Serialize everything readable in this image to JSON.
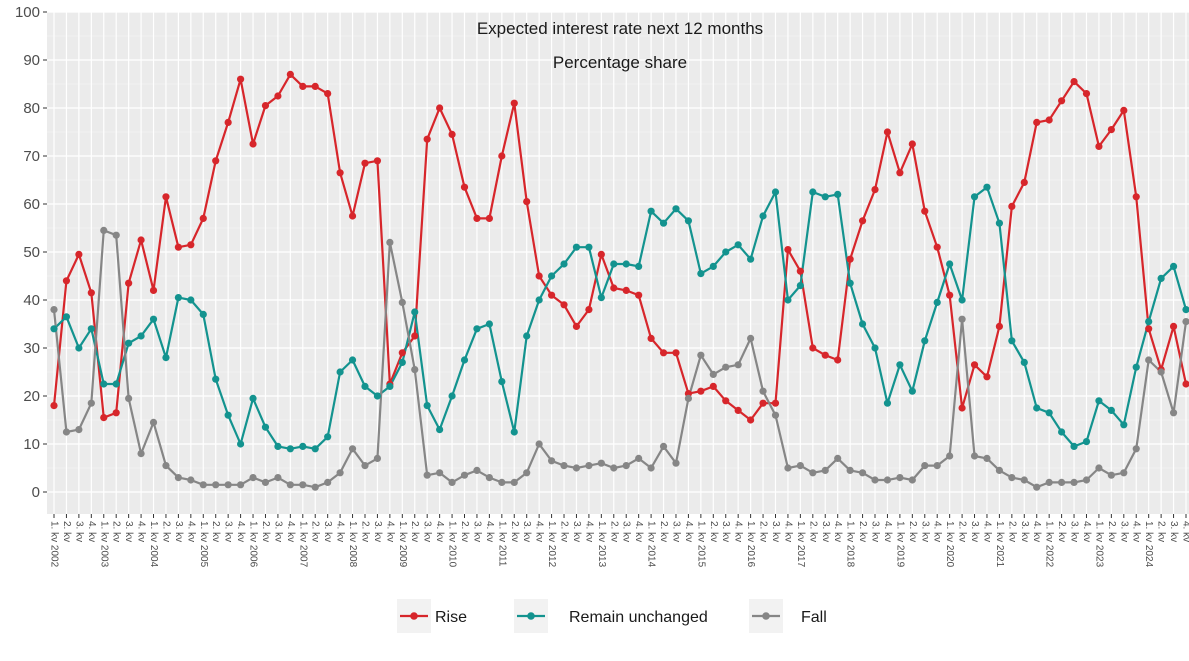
{
  "chart_data": {
    "type": "line",
    "title": "Expected interest rate next 12 months",
    "subtitle": "Percentage share",
    "ylim": [
      -5,
      100
    ],
    "yticks": [
      0,
      10,
      20,
      30,
      40,
      50,
      60,
      70,
      80,
      90,
      100
    ],
    "grid": true,
    "legend_position": "bottom",
    "categories": [
      "1. kv 2002",
      "2. kv",
      "3. kv",
      "4. kv",
      "1. kv 2003",
      "2. kv",
      "3. kv",
      "4. kv",
      "1. kv 2004",
      "2. kv",
      "3. kv",
      "4. kv",
      "1. kv 2005",
      "2. kv",
      "3. kv",
      "4. kv",
      "1. kv 2006",
      "2. kv",
      "3. kv",
      "4. kv",
      "1. kv 2007",
      "2. kv",
      "3. kv",
      "4. kv",
      "1. kv 2008",
      "2. kv",
      "3. kv",
      "4. kv",
      "1. kv 2009",
      "2. kv",
      "3. kv",
      "4. kv",
      "1. kv 2010",
      "2. kv",
      "3. kv",
      "4. kv",
      "1. kv 2011",
      "2. kv",
      "3. kv",
      "4. kv",
      "1. kv 2012",
      "2. kv",
      "3. kv",
      "4. kv",
      "1. kv 2013",
      "2. kv",
      "3. kv",
      "4. kv",
      "1. kv 2014",
      "2. kv",
      "3. kv",
      "4. kv",
      "1. kv 2015",
      "2. kv",
      "3. kv",
      "4. kv",
      "1. kv 2016",
      "2. kv",
      "3. kv",
      "4. kv",
      "1. kv 2017",
      "2. kv",
      "3. kv",
      "4. kv",
      "1. kv 2018",
      "2. kv",
      "3. kv",
      "4. kv",
      "1. kv 2019",
      "2. kv",
      "3. kv",
      "4. kv",
      "1. kv 2020",
      "2. kv",
      "3. kv",
      "4. kv",
      "1. kv 2021",
      "2. kv",
      "3. kv",
      "4. kv",
      "1. kv 2022",
      "2. kv",
      "3. kv",
      "4. kv",
      "1. kv 2023",
      "2. kv",
      "3. kv",
      "4. kv",
      "1. kv 2024",
      "2. kv",
      "3. kv",
      "4. kv"
    ],
    "series": [
      {
        "name": "Rise",
        "color": "#d7262b",
        "values": [
          18,
          44,
          49.5,
          41.5,
          15.5,
          16.5,
          43.5,
          52.5,
          42,
          61.5,
          51,
          51.5,
          57,
          69,
          77,
          86,
          72.5,
          80.5,
          82.5,
          87,
          84.5,
          84.5,
          83,
          66.5,
          57.5,
          68.5,
          69,
          22.5,
          29,
          32.5,
          73.5,
          80,
          74.5,
          63.5,
          57,
          57,
          70,
          81,
          60.5,
          45,
          41,
          39,
          34.5,
          38,
          49.5,
          42.5,
          42,
          41,
          32,
          29,
          29,
          20.5,
          21,
          22,
          19,
          17,
          15,
          18.5,
          18.5,
          50.5,
          46,
          30,
          28.5,
          27.5,
          48.5,
          56.5,
          63,
          75,
          66.5,
          72.5,
          58.5,
          51,
          41,
          17.5,
          26.5,
          24,
          34.5,
          59.5,
          64.5,
          77,
          77.5,
          81.5,
          85.5,
          83,
          72,
          75.5,
          79.5,
          61.5,
          34,
          25.5,
          34.5,
          22.5
        ]
      },
      {
        "name": "Remain unchanged",
        "color": "#13938f",
        "values": [
          34,
          36.5,
          30,
          34,
          22.5,
          22.5,
          31,
          32.5,
          36,
          28,
          40.5,
          40,
          37,
          23.5,
          16,
          10,
          19.5,
          13.5,
          9.5,
          9,
          9.5,
          9,
          11.5,
          25,
          27.5,
          22,
          20,
          22,
          27,
          37.5,
          18,
          13,
          20,
          27.5,
          34,
          35,
          23,
          12.5,
          32.5,
          40,
          45,
          47.5,
          51,
          51,
          40.5,
          47.5,
          47.5,
          47,
          58.5,
          56,
          59,
          56.5,
          45.5,
          47,
          50,
          51.5,
          48.5,
          57.5,
          62.5,
          40,
          43,
          62.5,
          61.5,
          62,
          43.5,
          35,
          30,
          18.5,
          26.5,
          21,
          31.5,
          39.5,
          47.5,
          40,
          61.5,
          63.5,
          56,
          31.5,
          27,
          17.5,
          16.5,
          12.5,
          9.5,
          10.5,
          19,
          17,
          14,
          26,
          35.5,
          44.5,
          47,
          38
        ]
      },
      {
        "name": "Fall",
        "color": "#868686",
        "values": [
          38,
          12.5,
          13,
          18.5,
          54.5,
          53.5,
          19.5,
          8,
          14.5,
          5.5,
          3,
          2.5,
          1.5,
          1.5,
          1.5,
          1.5,
          3,
          2,
          3,
          1.5,
          1.5,
          1,
          2,
          4,
          9,
          5.5,
          7,
          52,
          39.5,
          25.5,
          3.5,
          4,
          2,
          3.5,
          4.5,
          3,
          2,
          2,
          4,
          10,
          6.5,
          5.5,
          5,
          5.5,
          6,
          5,
          5.5,
          7,
          5,
          9.5,
          6,
          19.5,
          28.5,
          24.5,
          26,
          26.5,
          32,
          21,
          16,
          5,
          5.5,
          4,
          4.5,
          7,
          4.5,
          4,
          2.5,
          2.5,
          3,
          2.5,
          5.5,
          5.5,
          7.5,
          36,
          7.5,
          7,
          4.5,
          3,
          2.5,
          1,
          2,
          2,
          2,
          2.5,
          5,
          3.5,
          4,
          9,
          27.5,
          25,
          16.5,
          35.5
        ]
      }
    ]
  }
}
